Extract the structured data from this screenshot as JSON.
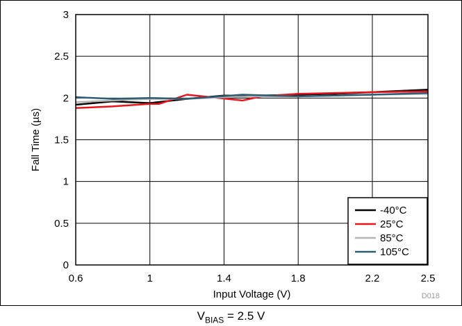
{
  "chart_data": {
    "type": "line",
    "xlabel": "Input Voltage (V)",
    "ylabel": "Fall Time  (µs)",
    "xlim": [
      0.6,
      2.5
    ],
    "ylim": [
      0,
      3
    ],
    "xticks": [
      "0.6",
      "1",
      "1.4",
      "1.8",
      "2.2",
      "2.5"
    ],
    "yticks": [
      "0",
      "0.5",
      "1",
      "1.5",
      "2",
      "2.5",
      "3"
    ],
    "grid": true,
    "legend_position": "bottom-right",
    "series": [
      {
        "name": "-40°C",
        "color": "#000000",
        "x": [
          0.6,
          0.8,
          1.0,
          1.2,
          1.4,
          1.6,
          1.8,
          2.0,
          2.2,
          2.5
        ],
        "y": [
          1.92,
          1.96,
          1.94,
          1.99,
          2.03,
          2.03,
          2.04,
          2.05,
          2.07,
          2.1
        ]
      },
      {
        "name": "25°C",
        "color": "#e8141d",
        "x": [
          0.6,
          0.8,
          1.0,
          1.05,
          1.2,
          1.5,
          1.6,
          1.8,
          2.0,
          2.2,
          2.5
        ],
        "y": [
          1.88,
          1.9,
          1.93,
          1.93,
          2.04,
          1.97,
          2.02,
          2.05,
          2.06,
          2.07,
          2.08
        ]
      },
      {
        "name": "85°C",
        "color": "#b3b3b3",
        "x": [
          0.6,
          0.8,
          1.0,
          1.2,
          1.4,
          1.6,
          1.8,
          2.0,
          2.2,
          2.5
        ],
        "y": [
          1.95,
          1.97,
          1.99,
          1.99,
          2.01,
          2.02,
          2.02,
          2.03,
          2.04,
          2.05
        ]
      },
      {
        "name": "105°C",
        "color": "#2e5c73",
        "x": [
          0.6,
          0.8,
          1.0,
          1.2,
          1.5,
          1.8,
          2.0,
          2.2,
          2.5
        ],
        "y": [
          2.01,
          1.99,
          2.0,
          1.99,
          2.04,
          2.02,
          2.03,
          2.04,
          2.06
        ]
      }
    ],
    "figure_id": "D018"
  },
  "caption": {
    "main": "V",
    "sub": "BIAS",
    "rest": " = 2.5 V"
  }
}
